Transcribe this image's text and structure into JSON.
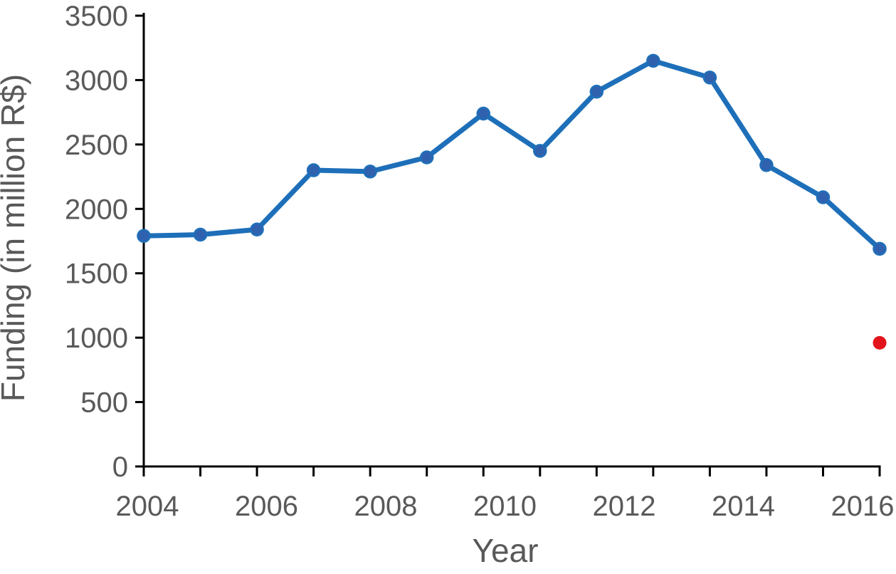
{
  "chart_data": {
    "type": "line",
    "title": "",
    "xlabel": "Year",
    "ylabel": "Funding (in million R$)",
    "x": [
      2004,
      2005,
      2006,
      2007,
      2008,
      2009,
      2010,
      2011,
      2012,
      2013,
      2014,
      2015,
      2016,
      2017
    ],
    "series": [
      {
        "name": "funding-actual",
        "color": "#1E6FB9",
        "marker_color": "#3061AE",
        "values": [
          1790,
          1800,
          1840,
          2300,
          2290,
          2400,
          2740,
          2450,
          2910,
          3150,
          3020,
          2340,
          2090,
          1690
        ]
      }
    ],
    "highlight_point": {
      "name": "funding-highlight-2017",
      "x": 2017,
      "value": 960,
      "color": "#E2131B"
    },
    "ylim": [
      0,
      3500
    ],
    "yticks": [
      0,
      500,
      1000,
      1500,
      2000,
      2500,
      3000,
      3500
    ],
    "xtick_labels": [
      "2004",
      "2006",
      "2008",
      "2010",
      "2012",
      "2014",
      "2016"
    ],
    "grid": false,
    "legend": null,
    "axis_color": "#000000",
    "text_color": "#595959",
    "background_color": "#FFFFFF"
  }
}
